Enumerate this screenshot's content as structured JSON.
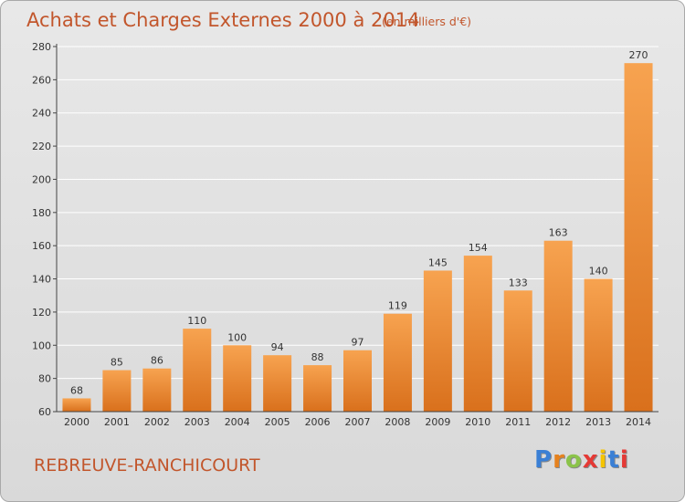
{
  "title": "Achats et Charges Externes 2000 à 2014",
  "unit": "(en milliers d'€)",
  "place": "REBREUVE-RANCHICOURT",
  "logo": {
    "text": "Proxiti",
    "colors": [
      "#3a7fd5",
      "#e6821e",
      "#8bc34a",
      "#e53935",
      "#f5c400",
      "#3a7fd5",
      "#e53935"
    ]
  },
  "colors": {
    "title": "#c2562c",
    "bar_light": "#f7a350",
    "bar_dark": "#d9701c",
    "grid": "#ffffff",
    "axis": "#444444"
  },
  "chart_data": {
    "type": "bar",
    "categories": [
      "2000",
      "2001",
      "2002",
      "2003",
      "2004",
      "2005",
      "2006",
      "2007",
      "2008",
      "2009",
      "2010",
      "2011",
      "2012",
      "2013",
      "2014"
    ],
    "values": [
      68,
      85,
      86,
      110,
      100,
      94,
      88,
      97,
      119,
      145,
      154,
      133,
      163,
      140,
      270
    ],
    "title": "Achats et Charges Externes 2000 à 2014",
    "subtitle": "(en milliers d'€)",
    "ylim": [
      60,
      280
    ],
    "yticks": [
      60,
      80,
      100,
      120,
      140,
      160,
      180,
      200,
      220,
      240,
      260,
      280
    ],
    "grid": true,
    "legend": "none"
  }
}
